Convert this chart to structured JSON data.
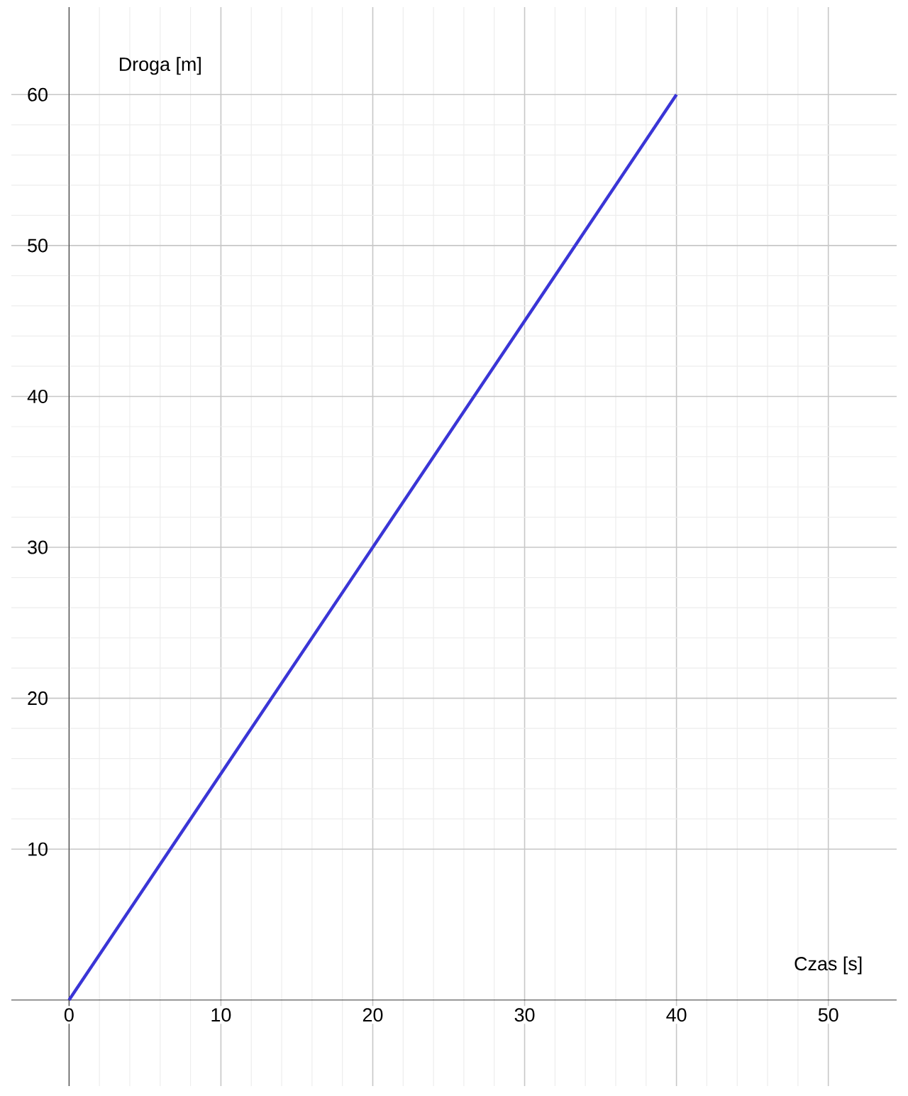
{
  "chart_data": {
    "type": "line",
    "xlabel": "Czas [s]",
    "ylabel": "Droga [m]",
    "x": [
      0,
      40
    ],
    "series": [
      {
        "color": "#3a35d6",
        "values": [
          0,
          60
        ]
      }
    ],
    "xlim": [
      -3.8,
      54.5
    ],
    "ylim": [
      -5.7,
      65.8
    ],
    "xticks": [
      0,
      10,
      20,
      30,
      40,
      50
    ],
    "yticks": [
      10,
      20,
      30,
      40,
      50,
      60
    ],
    "grid": true,
    "marker": "none",
    "line_style": "solid"
  }
}
